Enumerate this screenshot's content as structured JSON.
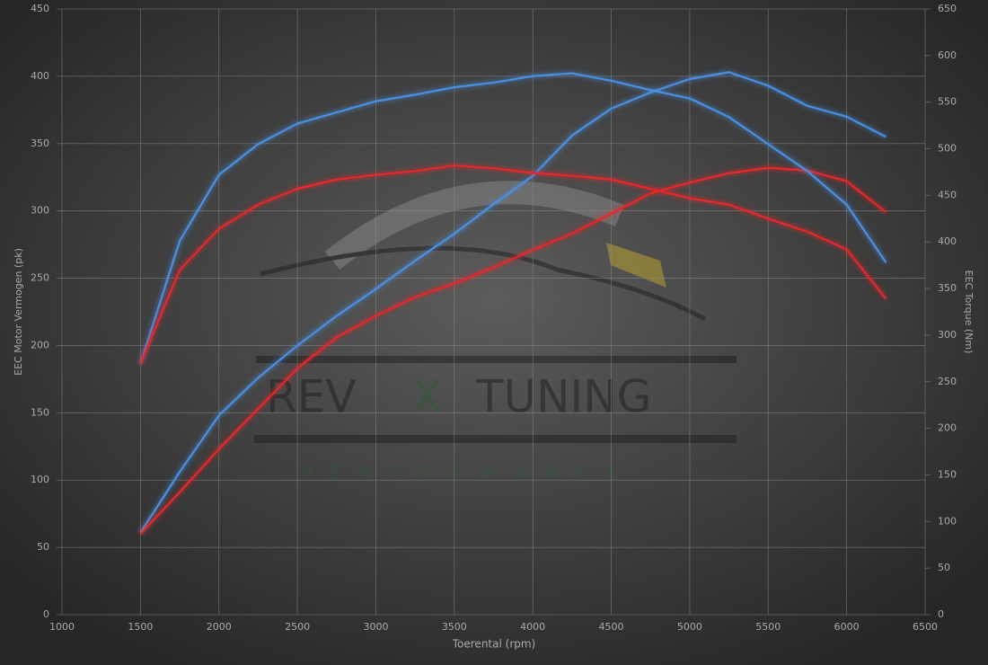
{
  "chart_data": {
    "type": "line",
    "x_label": "Toerental (rpm)",
    "y_label": "EEC Motor Vermogen (pk)",
    "y2_label": "EEC Torque (Nm)",
    "watermark": {
      "rev": "REV",
      "x": "X",
      "tuning": "TUNING",
      "sub": "PERFORMANCE"
    },
    "x": [
      1500,
      1750,
      2000,
      2250,
      2500,
      2750,
      3000,
      3250,
      3500,
      3750,
      4000,
      4250,
      4500,
      4750,
      5000,
      5250,
      5500,
      5750,
      6000,
      6250
    ],
    "xlim": [
      1000,
      6500
    ],
    "xticks": [
      1000,
      1500,
      2000,
      2500,
      3000,
      3500,
      4000,
      4500,
      5000,
      5500,
      6000,
      6500
    ],
    "ylim": [
      0,
      450
    ],
    "yticks": [
      0,
      50,
      100,
      150,
      200,
      250,
      300,
      350,
      400,
      450
    ],
    "y2lim": [
      0,
      650
    ],
    "y2ticks": [
      0,
      50,
      100,
      150,
      200,
      250,
      300,
      350,
      400,
      450,
      500,
      550,
      600,
      650
    ],
    "grid": true,
    "series": [
      {
        "color": "#4a90e2",
        "values": [
          61,
          106,
          148,
          176,
          200,
          222,
          242,
          263,
          283,
          305,
          326,
          356,
          376,
          388,
          398,
          403,
          393,
          378,
          370,
          355
        ]
      },
      {
        "color": "#e8282a",
        "values": [
          60,
          91,
          123,
          153,
          183,
          206,
          222,
          236,
          246,
          258,
          271,
          283,
          298,
          313,
          321,
          328,
          332,
          330,
          322,
          299
        ]
      },
      {
        "color": "#4a90e2",
        "axis": "y2",
        "values": [
          269,
          401,
          472,
          505,
          527,
          539,
          551,
          558,
          566,
          571,
          578,
          581,
          573,
          563,
          554,
          534,
          505,
          476,
          440,
          378
        ]
      },
      {
        "color": "#e8282a",
        "axis": "y2",
        "values": [
          269,
          370,
          414,
          440,
          457,
          467,
          472,
          476,
          482,
          479,
          474,
          471,
          467,
          457,
          447,
          440,
          425,
          411,
          392,
          339
        ]
      }
    ]
  }
}
